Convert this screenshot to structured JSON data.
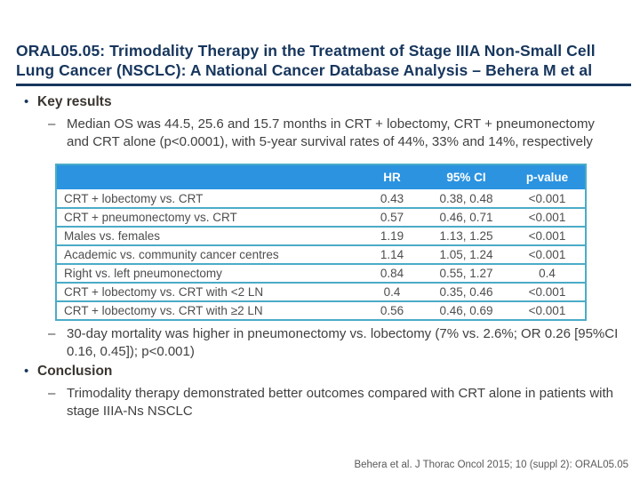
{
  "slide": {
    "title": "ORAL05.05: Trimodality Therapy in the Treatment of Stage IIIA Non-Small Cell Lung Cancer (NSCLC): A National Cancer Database Analysis – Behera M et al",
    "footer_citation": "Behera et al. J Thorac Oncol 2015; 10 (suppl 2): ORAL05.05"
  },
  "ui": {
    "bullet_glyph": "•",
    "dash_glyph": "–"
  },
  "bullets": {
    "key_results_heading": "Key results",
    "median_os": "Median OS was 44.5, 25.6 and 15.7 months in CRT + lobectomy, CRT + pneumonectomy and CRT alone (p<0.0001), with 5-year survival rates of 44%, 33% and 14%, respectively",
    "mortality": "30-day mortality was higher in pneumonectomy vs. lobectomy (7% vs. 2.6%; OR 0.26 [95%CI 0.16, 0.45]); p<0.001)",
    "conclusion_heading": "Conclusion",
    "conclusion_text": "Trimodality therapy demonstrated better outcomes compared with CRT alone in patients with stage IIIA-Ns NSCLC"
  },
  "table": {
    "headers": [
      "",
      "HR",
      "95% CI",
      "p-value"
    ],
    "rows": [
      {
        "label": "CRT + lobectomy vs. CRT",
        "hr": "0.43",
        "ci": "0.38, 0.48",
        "p": "<0.001"
      },
      {
        "label": "CRT + pneumonectomy vs. CRT",
        "hr": "0.57",
        "ci": "0.46, 0.71",
        "p": "<0.001"
      },
      {
        "label": "Males vs. females",
        "hr": "1.19",
        "ci": "1.13, 1.25",
        "p": "<0.001"
      },
      {
        "label": "Academic vs. community cancer centres",
        "hr": "1.14",
        "ci": "1.05, 1.24",
        "p": "<0.001"
      },
      {
        "label": "Right vs. left pneumonectomy",
        "hr": "0.84",
        "ci": "0.55, 1.27",
        "p": "0.4"
      },
      {
        "label": "CRT + lobectomy vs. CRT with <2 LN",
        "hr": "0.4",
        "ci": "0.35, 0.46",
        "p": "<0.001"
      },
      {
        "label": "CRT + lobectomy vs. CRT with ≥2 LN",
        "hr": "0.56",
        "ci": "0.46, 0.69",
        "p": "<0.001"
      }
    ]
  },
  "colors": {
    "title_navy": "#17365d",
    "table_header_blue": "#2b93e0",
    "table_border_blue": "#4bacc6",
    "body_text": "#404040"
  }
}
